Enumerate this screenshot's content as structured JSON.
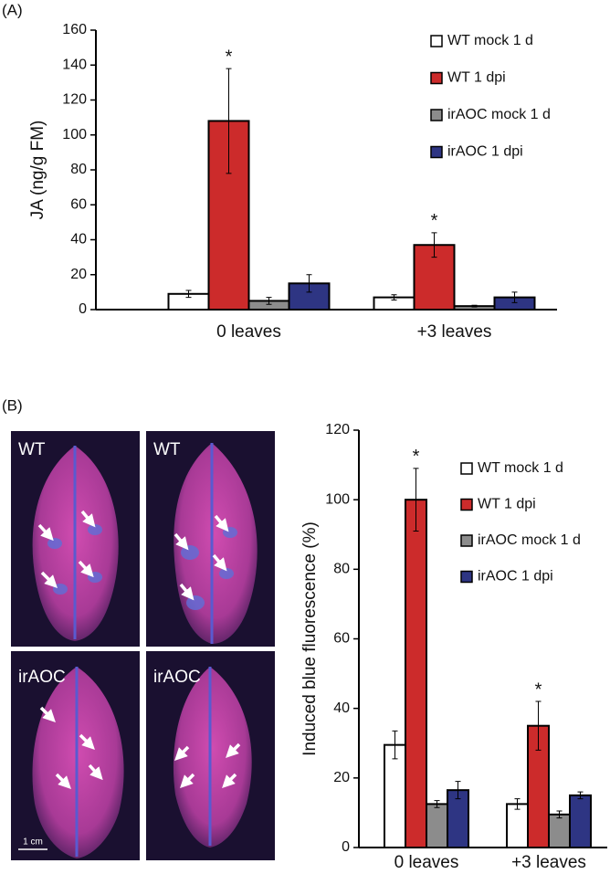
{
  "panel_labels": [
    "(A)",
    "(B)"
  ],
  "photos": [
    {
      "label": "WT"
    },
    {
      "label": "WT"
    },
    {
      "label": "irAOC"
    },
    {
      "label": "irAOC"
    }
  ],
  "scale_bar": "1 cm",
  "chart_data": [
    {
      "type": "bar",
      "y_label": "JA (ng/g FM)",
      "categories": [
        "0 leaves",
        "+3 leaves"
      ],
      "series": [
        {
          "name": "WT mock 1 d",
          "color": "#ffffff",
          "values": [
            9,
            7
          ],
          "errors": [
            2,
            1.5
          ]
        },
        {
          "name": "WT 1 dpi",
          "color": "#cc2b2b",
          "values": [
            108,
            37
          ],
          "errors": [
            30,
            7
          ]
        },
        {
          "name": "irAOC mock 1 d",
          "color": "#8c8c8c",
          "values": [
            5,
            2
          ],
          "errors": [
            2,
            0.5
          ]
        },
        {
          "name": "irAOC 1 dpi",
          "color": "#2e3583",
          "values": [
            15,
            7
          ],
          "errors": [
            5,
            3
          ]
        }
      ],
      "annotations": [
        "*",
        "*"
      ],
      "ylim": [
        0,
        160
      ],
      "yticks": [
        0,
        20,
        40,
        60,
        80,
        100,
        120,
        140,
        160
      ]
    },
    {
      "type": "bar",
      "y_label": "Induced blue fluorescence (%)",
      "categories": [
        "0 leaves",
        "+3 leaves"
      ],
      "series": [
        {
          "name": "WT mock 1 d",
          "color": "#ffffff",
          "values": [
            29.5,
            12.5
          ],
          "errors": [
            4,
            1.5
          ]
        },
        {
          "name": "WT 1 dpi",
          "color": "#cc2b2b",
          "values": [
            100,
            35
          ],
          "errors": [
            9,
            7
          ]
        },
        {
          "name": "irAOC mock 1 d",
          "color": "#8c8c8c",
          "values": [
            12.5,
            9.5
          ],
          "errors": [
            1,
            1
          ]
        },
        {
          "name": "irAOC 1 dpi",
          "color": "#2e3583",
          "values": [
            16.5,
            15
          ],
          "errors": [
            2.5,
            1
          ]
        }
      ],
      "annotations": [
        "*",
        "*"
      ],
      "ylim": [
        0,
        120
      ],
      "yticks": [
        0,
        20,
        40,
        60,
        80,
        100,
        120
      ]
    }
  ]
}
